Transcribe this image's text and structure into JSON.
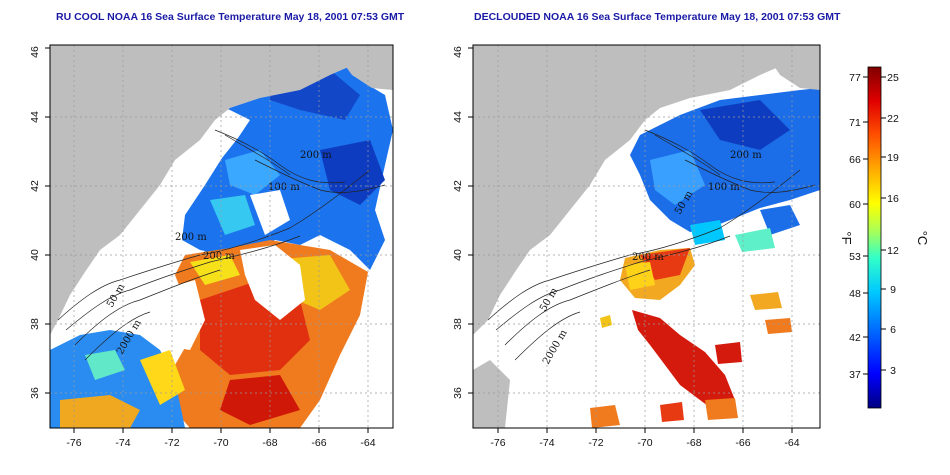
{
  "panels": [
    {
      "title": "RU COOL NOAA 16 Sea Surface Temperature May 18, 2001 07:53 GMT",
      "contour_labels": [
        "200 m",
        "200 m",
        "100 m",
        "200 m",
        "50 m",
        "2000 m"
      ]
    },
    {
      "title": "DECLOUDED NOAA 16 Sea Surface Temperature May 18, 2001 07:53 GMT",
      "contour_labels": [
        "200 m",
        "100 m",
        "50 m",
        "200 m",
        "50 m",
        "2000 m"
      ]
    }
  ],
  "axes": {
    "x_ticks": [
      "-76",
      "-74",
      "-72",
      "-70",
      "-68",
      "-66",
      "-64"
    ],
    "y_ticks": [
      "36",
      "38",
      "40",
      "42",
      "44",
      "46"
    ]
  },
  "colorbar": {
    "fahrenheit_ticks": [
      "77",
      "71",
      "66",
      "60",
      "53",
      "48",
      "42",
      "37"
    ],
    "celsius_ticks": [
      "25",
      "22",
      "19",
      "16",
      "12",
      "9",
      "6",
      "3"
    ],
    "fahrenheit_unit": "°F",
    "celsius_unit": "°C",
    "colors": [
      "#000080",
      "#0000ff",
      "#0064ff",
      "#00c8ff",
      "#32ffc8",
      "#aaff55",
      "#ffff00",
      "#ffaa00",
      "#ff5000",
      "#e00000",
      "#800000"
    ]
  }
}
